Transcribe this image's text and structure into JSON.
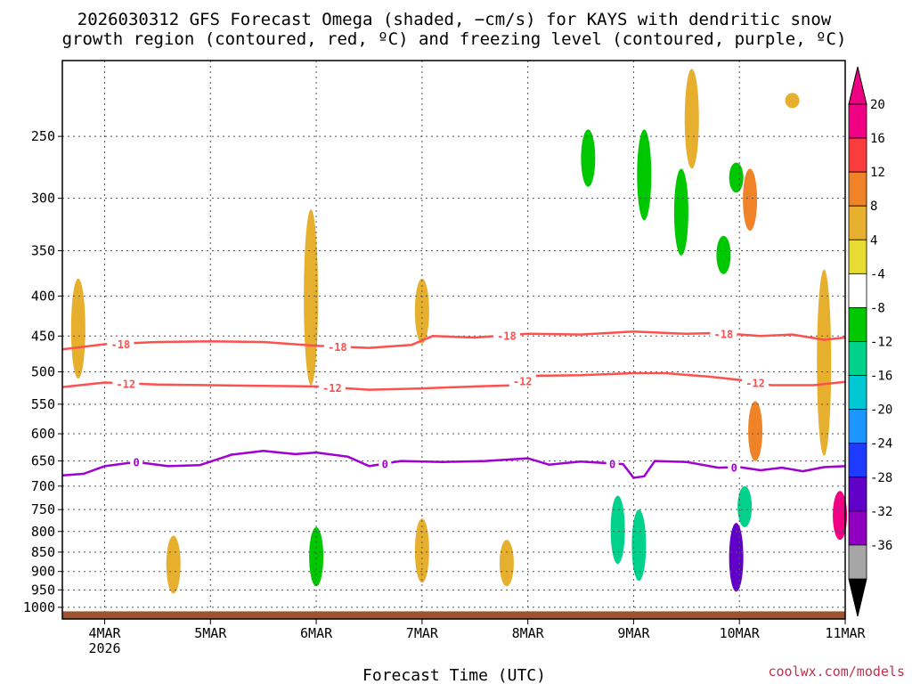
{
  "chart_data": {
    "type": "heatmap",
    "title_line1": "2026030312 GFS Forecast Omega (shaded, −cm/s) for KAYS with dendritic snow",
    "title_line2": "growth region (contoured, red, ºC) and freezing level (contoured, purple, ºC)",
    "xlabel": "Forecast Time (UTC)",
    "ylabel": "",
    "credit": "coolwx.com/models",
    "x_range_days": [
      3.6,
      11.0
    ],
    "y_range_hpa": [
      1035,
      200
    ],
    "y_ticks": [
      250,
      300,
      350,
      400,
      450,
      500,
      550,
      600,
      650,
      700,
      750,
      800,
      850,
      900,
      950,
      1000
    ],
    "x_ticks": [
      {
        "day": 4,
        "label": "4MAR",
        "sub": "2026"
      },
      {
        "day": 5,
        "label": "5MAR",
        "sub": ""
      },
      {
        "day": 6,
        "label": "6MAR",
        "sub": ""
      },
      {
        "day": 7,
        "label": "7MAR",
        "sub": ""
      },
      {
        "day": 8,
        "label": "8MAR",
        "sub": ""
      },
      {
        "day": 9,
        "label": "9MAR",
        "sub": ""
      },
      {
        "day": 10,
        "label": "10MAR",
        "sub": ""
      },
      {
        "day": 11,
        "label": "11MAR",
        "sub": ""
      }
    ],
    "colorbar": {
      "colors": [
        "#a6a6a6",
        "#9000c0",
        "#6000c8",
        "#1e3cff",
        "#1e96ff",
        "#00c8d2",
        "#00d28c",
        "#00c800",
        "#ffffff",
        "#e6dc32",
        "#e6af2d",
        "#f08228",
        "#fa3c3c",
        "#f00082"
      ],
      "labels": [
        "-36",
        "-32",
        "-28",
        "-24",
        "-20",
        "-16",
        "-12",
        "-8",
        "-4",
        "4",
        "8",
        "12",
        "16",
        "20"
      ],
      "top_arrow_color": "#f00082",
      "bottom_arrow_color": "#000000"
    },
    "contours": [
      {
        "name": "-18",
        "color": "#ff5050",
        "label": "-18",
        "points": [
          [
            3.6,
            468
          ],
          [
            4.0,
            461
          ],
          [
            4.5,
            458
          ],
          [
            5.0,
            457
          ],
          [
            5.5,
            458
          ],
          [
            6.0,
            463
          ],
          [
            6.5,
            466
          ],
          [
            6.9,
            462
          ],
          [
            7.1,
            450
          ],
          [
            7.5,
            452
          ],
          [
            8.0,
            447
          ],
          [
            8.5,
            448
          ],
          [
            9.0,
            444
          ],
          [
            9.5,
            447
          ],
          [
            9.8,
            446
          ],
          [
            10.2,
            450
          ],
          [
            10.5,
            448
          ],
          [
            10.8,
            455
          ],
          [
            11.0,
            452
          ]
        ],
        "label_days": [
          4.15,
          6.2,
          7.8,
          9.85
        ]
      },
      {
        "name": "-12",
        "color": "#ff5050",
        "label": "-12",
        "points": [
          [
            3.6,
            523
          ],
          [
            4.0,
            516
          ],
          [
            4.5,
            519
          ],
          [
            5.0,
            520
          ],
          [
            5.5,
            521
          ],
          [
            6.0,
            522
          ],
          [
            6.5,
            527
          ],
          [
            7.0,
            525
          ],
          [
            7.5,
            522
          ],
          [
            7.9,
            520
          ],
          [
            8.0,
            506
          ],
          [
            8.5,
            505
          ],
          [
            9.0,
            502
          ],
          [
            9.3,
            502
          ],
          [
            9.7,
            507
          ],
          [
            10.0,
            512
          ],
          [
            10.3,
            520
          ],
          [
            10.7,
            520
          ],
          [
            11.0,
            515
          ]
        ],
        "label_days": [
          4.2,
          6.15,
          7.95,
          10.15
        ]
      },
      {
        "name": "0",
        "color": "#a000d2",
        "label": "0",
        "points": [
          [
            3.6,
            678
          ],
          [
            3.8,
            675
          ],
          [
            4.0,
            660
          ],
          [
            4.3,
            652
          ],
          [
            4.6,
            660
          ],
          [
            4.9,
            658
          ],
          [
            5.2,
            638
          ],
          [
            5.5,
            631
          ],
          [
            5.8,
            637
          ],
          [
            6.0,
            634
          ],
          [
            6.3,
            642
          ],
          [
            6.5,
            660
          ],
          [
            6.8,
            650
          ],
          [
            7.2,
            652
          ],
          [
            7.6,
            650
          ],
          [
            8.0,
            645
          ],
          [
            8.2,
            657
          ],
          [
            8.5,
            651
          ],
          [
            8.9,
            656
          ],
          [
            9.0,
            683
          ],
          [
            9.1,
            680
          ],
          [
            9.2,
            650
          ],
          [
            9.5,
            652
          ],
          [
            9.8,
            663
          ],
          [
            10.0,
            662
          ],
          [
            10.2,
            668
          ],
          [
            10.4,
            663
          ],
          [
            10.6,
            670
          ],
          [
            10.8,
            662
          ],
          [
            11.0,
            660
          ]
        ],
        "label_days": [
          4.3,
          6.65,
          8.8,
          9.95
        ]
      }
    ],
    "omega_regions": [
      {
        "name": "snow-column-a",
        "value": 6,
        "day": 3.75,
        "hpa_top": 380,
        "hpa_bottom": 510
      },
      {
        "name": "snow-column-b",
        "value": 6,
        "day": 5.95,
        "hpa_top": 310,
        "hpa_bottom": 520
      },
      {
        "name": "snow-column-c",
        "value": 5,
        "day": 7.0,
        "hpa_top": 380,
        "hpa_bottom": 460
      },
      {
        "name": "upper-updraft-1",
        "value": -10,
        "day": 8.57,
        "hpa_top": 245,
        "hpa_bottom": 290
      },
      {
        "name": "upper-updraft-2",
        "value": -12,
        "day": 9.1,
        "hpa_top": 245,
        "hpa_bottom": 320
      },
      {
        "name": "upper-updraft-3",
        "value": -9,
        "day": 9.45,
        "hpa_top": 275,
        "hpa_bottom": 355
      },
      {
        "name": "upper-updraft-4",
        "value": -9,
        "day": 9.85,
        "hpa_top": 335,
        "hpa_bottom": 375
      },
      {
        "name": "upper-updraft-5",
        "value": -10,
        "day": 9.97,
        "hpa_top": 270,
        "hpa_bottom": 295
      },
      {
        "name": "upper-descent-1",
        "value": 6,
        "day": 9.55,
        "hpa_top": 205,
        "hpa_bottom": 275
      },
      {
        "name": "upper-descent-2",
        "value": 10,
        "day": 10.1,
        "hpa_top": 275,
        "hpa_bottom": 330
      },
      {
        "name": "upper-descent-3",
        "value": 6,
        "day": 10.5,
        "hpa_top": 220,
        "hpa_bottom": 230
      },
      {
        "name": "low-updraft-1",
        "value": -16,
        "day": 8.85,
        "hpa_top": 720,
        "hpa_bottom": 880
      },
      {
        "name": "low-updraft-2",
        "value": -14,
        "day": 9.05,
        "hpa_top": 750,
        "hpa_bottom": 925
      },
      {
        "name": "low-updraft-3",
        "value": -30,
        "day": 9.97,
        "hpa_top": 780,
        "hpa_bottom": 955
      },
      {
        "name": "low-updraft-4",
        "value": -14,
        "day": 10.05,
        "hpa_top": 700,
        "hpa_bottom": 790
      },
      {
        "name": "low-updraft-5",
        "value": -8,
        "day": 10.2,
        "hpa_top": 545,
        "hpa_bottom": 600
      },
      {
        "name": "low-descent-1",
        "value": 6,
        "day": 4.65,
        "hpa_top": 810,
        "hpa_bottom": 960
      },
      {
        "name": "low-descent-2",
        "value": -12,
        "day": 6.0,
        "hpa_top": 790,
        "hpa_bottom": 940
      },
      {
        "name": "low-descent-3",
        "value": 6,
        "day": 7.0,
        "hpa_top": 770,
        "hpa_bottom": 930
      },
      {
        "name": "low-descent-4",
        "value": 5,
        "day": 7.8,
        "hpa_top": 820,
        "hpa_bottom": 940
      },
      {
        "name": "low-descent-5",
        "value": 10,
        "day": 10.15,
        "hpa_top": 545,
        "hpa_bottom": 650
      },
      {
        "name": "low-descent-6",
        "value": 16,
        "day": 10.95,
        "hpa_top": 710,
        "hpa_bottom": 820
      },
      {
        "name": "low-descent-7",
        "value": 6,
        "day": 10.8,
        "hpa_top": 370,
        "hpa_bottom": 640
      }
    ]
  }
}
